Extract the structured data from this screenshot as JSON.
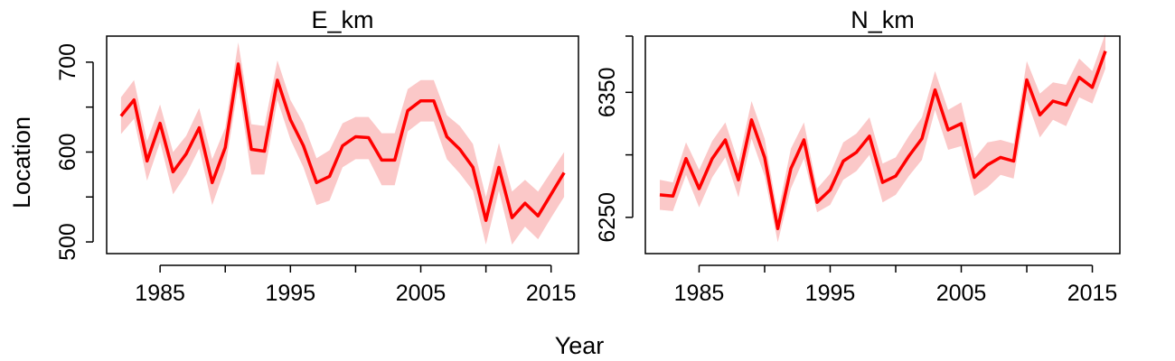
{
  "figure": {
    "xlabel": "Year",
    "ylabel": "Location"
  },
  "colors": {
    "line": "#ff0000",
    "band": "#fbc8c8"
  },
  "chart_data": [
    {
      "type": "line",
      "title": "E_km",
      "xlim": [
        1980.9,
        2017.1
      ],
      "ylim": [
        487,
        729
      ],
      "xticks": [
        1985,
        1990,
        1995,
        2000,
        2005,
        2010,
        2015
      ],
      "xtick_labels": [
        "1985",
        "",
        "1995",
        "",
        "2005",
        "",
        "2015"
      ],
      "yticks": [
        500,
        550,
        600,
        650,
        700
      ],
      "ytick_labels": [
        "500",
        "",
        "600",
        "",
        "700"
      ],
      "grid": false,
      "x": [
        1982,
        1983,
        1984,
        1985,
        1986,
        1987,
        1988,
        1989,
        1990,
        1991,
        1992,
        1993,
        1994,
        1995,
        1996,
        1997,
        1998,
        1999,
        2000,
        2001,
        2002,
        2003,
        2004,
        2005,
        2006,
        2007,
        2008,
        2009,
        2010,
        2011,
        2012,
        2013,
        2014,
        2015,
        2016
      ],
      "series": [
        {
          "values": [
            640,
            658,
            590,
            632,
            578,
            598,
            627,
            566,
            605,
            698,
            603,
            601,
            680,
            636,
            607,
            566,
            573,
            607,
            617,
            616,
            591,
            591,
            646,
            657,
            657,
            617,
            603,
            583,
            524,
            583,
            527,
            543,
            529,
            553,
            577
          ],
          "lower": [
            620,
            637,
            568,
            611,
            553,
            575,
            604,
            541,
            582,
            674,
            575,
            575,
            658,
            614,
            583,
            541,
            546,
            583,
            592,
            592,
            563,
            563,
            623,
            634,
            634,
            592,
            576,
            557,
            497,
            557,
            497,
            517,
            503,
            527,
            550
          ],
          "upper": [
            661,
            680,
            612,
            653,
            600,
            618,
            649,
            592,
            627,
            722,
            631,
            629,
            702,
            658,
            632,
            593,
            602,
            632,
            639,
            639,
            621,
            621,
            670,
            680,
            680,
            641,
            629,
            609,
            550,
            610,
            556,
            569,
            556,
            578,
            600
          ]
        }
      ]
    },
    {
      "type": "line",
      "title": "N_km",
      "xlim": [
        1980.9,
        2017.1
      ],
      "ylim": [
        6221,
        6395
      ],
      "xticks": [
        1985,
        1990,
        1995,
        2000,
        2005,
        2010,
        2015
      ],
      "xtick_labels": [
        "1985",
        "",
        "1995",
        "",
        "2005",
        "",
        "2015"
      ],
      "yticks": [
        6250,
        6300,
        6350,
        6400
      ],
      "ytick_labels": [
        "6250",
        "",
        "6350",
        ""
      ],
      "grid": false,
      "x": [
        1982,
        1983,
        1984,
        1985,
        1986,
        1987,
        1988,
        1989,
        1990,
        1991,
        1992,
        1993,
        1994,
        1995,
        1996,
        1997,
        1998,
        1999,
        2000,
        2001,
        2002,
        2003,
        2004,
        2005,
        2006,
        2007,
        2008,
        2009,
        2010,
        2011,
        2012,
        2013,
        2014,
        2015,
        2016
      ],
      "series": [
        {
          "values": [
            6268,
            6267,
            6297,
            6273,
            6297,
            6312,
            6280,
            6328,
            6298,
            6241,
            6289,
            6312,
            6262,
            6272,
            6295,
            6302,
            6315,
            6278,
            6283,
            6299,
            6313,
            6352,
            6320,
            6325,
            6282,
            6292,
            6298,
            6295,
            6360,
            6332,
            6343,
            6340,
            6362,
            6354,
            6383
          ],
          "lower": [
            6256,
            6255,
            6284,
            6258,
            6282,
            6298,
            6266,
            6313,
            6283,
            6230,
            6273,
            6297,
            6254,
            6260,
            6280,
            6287,
            6300,
            6262,
            6268,
            6283,
            6296,
            6336,
            6304,
            6307,
            6267,
            6274,
            6284,
            6281,
            6344,
            6314,
            6328,
            6323,
            6346,
            6341,
            6369
          ],
          "upper": [
            6280,
            6278,
            6310,
            6288,
            6311,
            6326,
            6294,
            6343,
            6313,
            6253,
            6305,
            6326,
            6273,
            6285,
            6310,
            6317,
            6330,
            6293,
            6298,
            6315,
            6330,
            6367,
            6336,
            6342,
            6297,
            6310,
            6312,
            6309,
            6375,
            6349,
            6358,
            6356,
            6377,
            6367,
            6397
          ]
        }
      ]
    }
  ]
}
